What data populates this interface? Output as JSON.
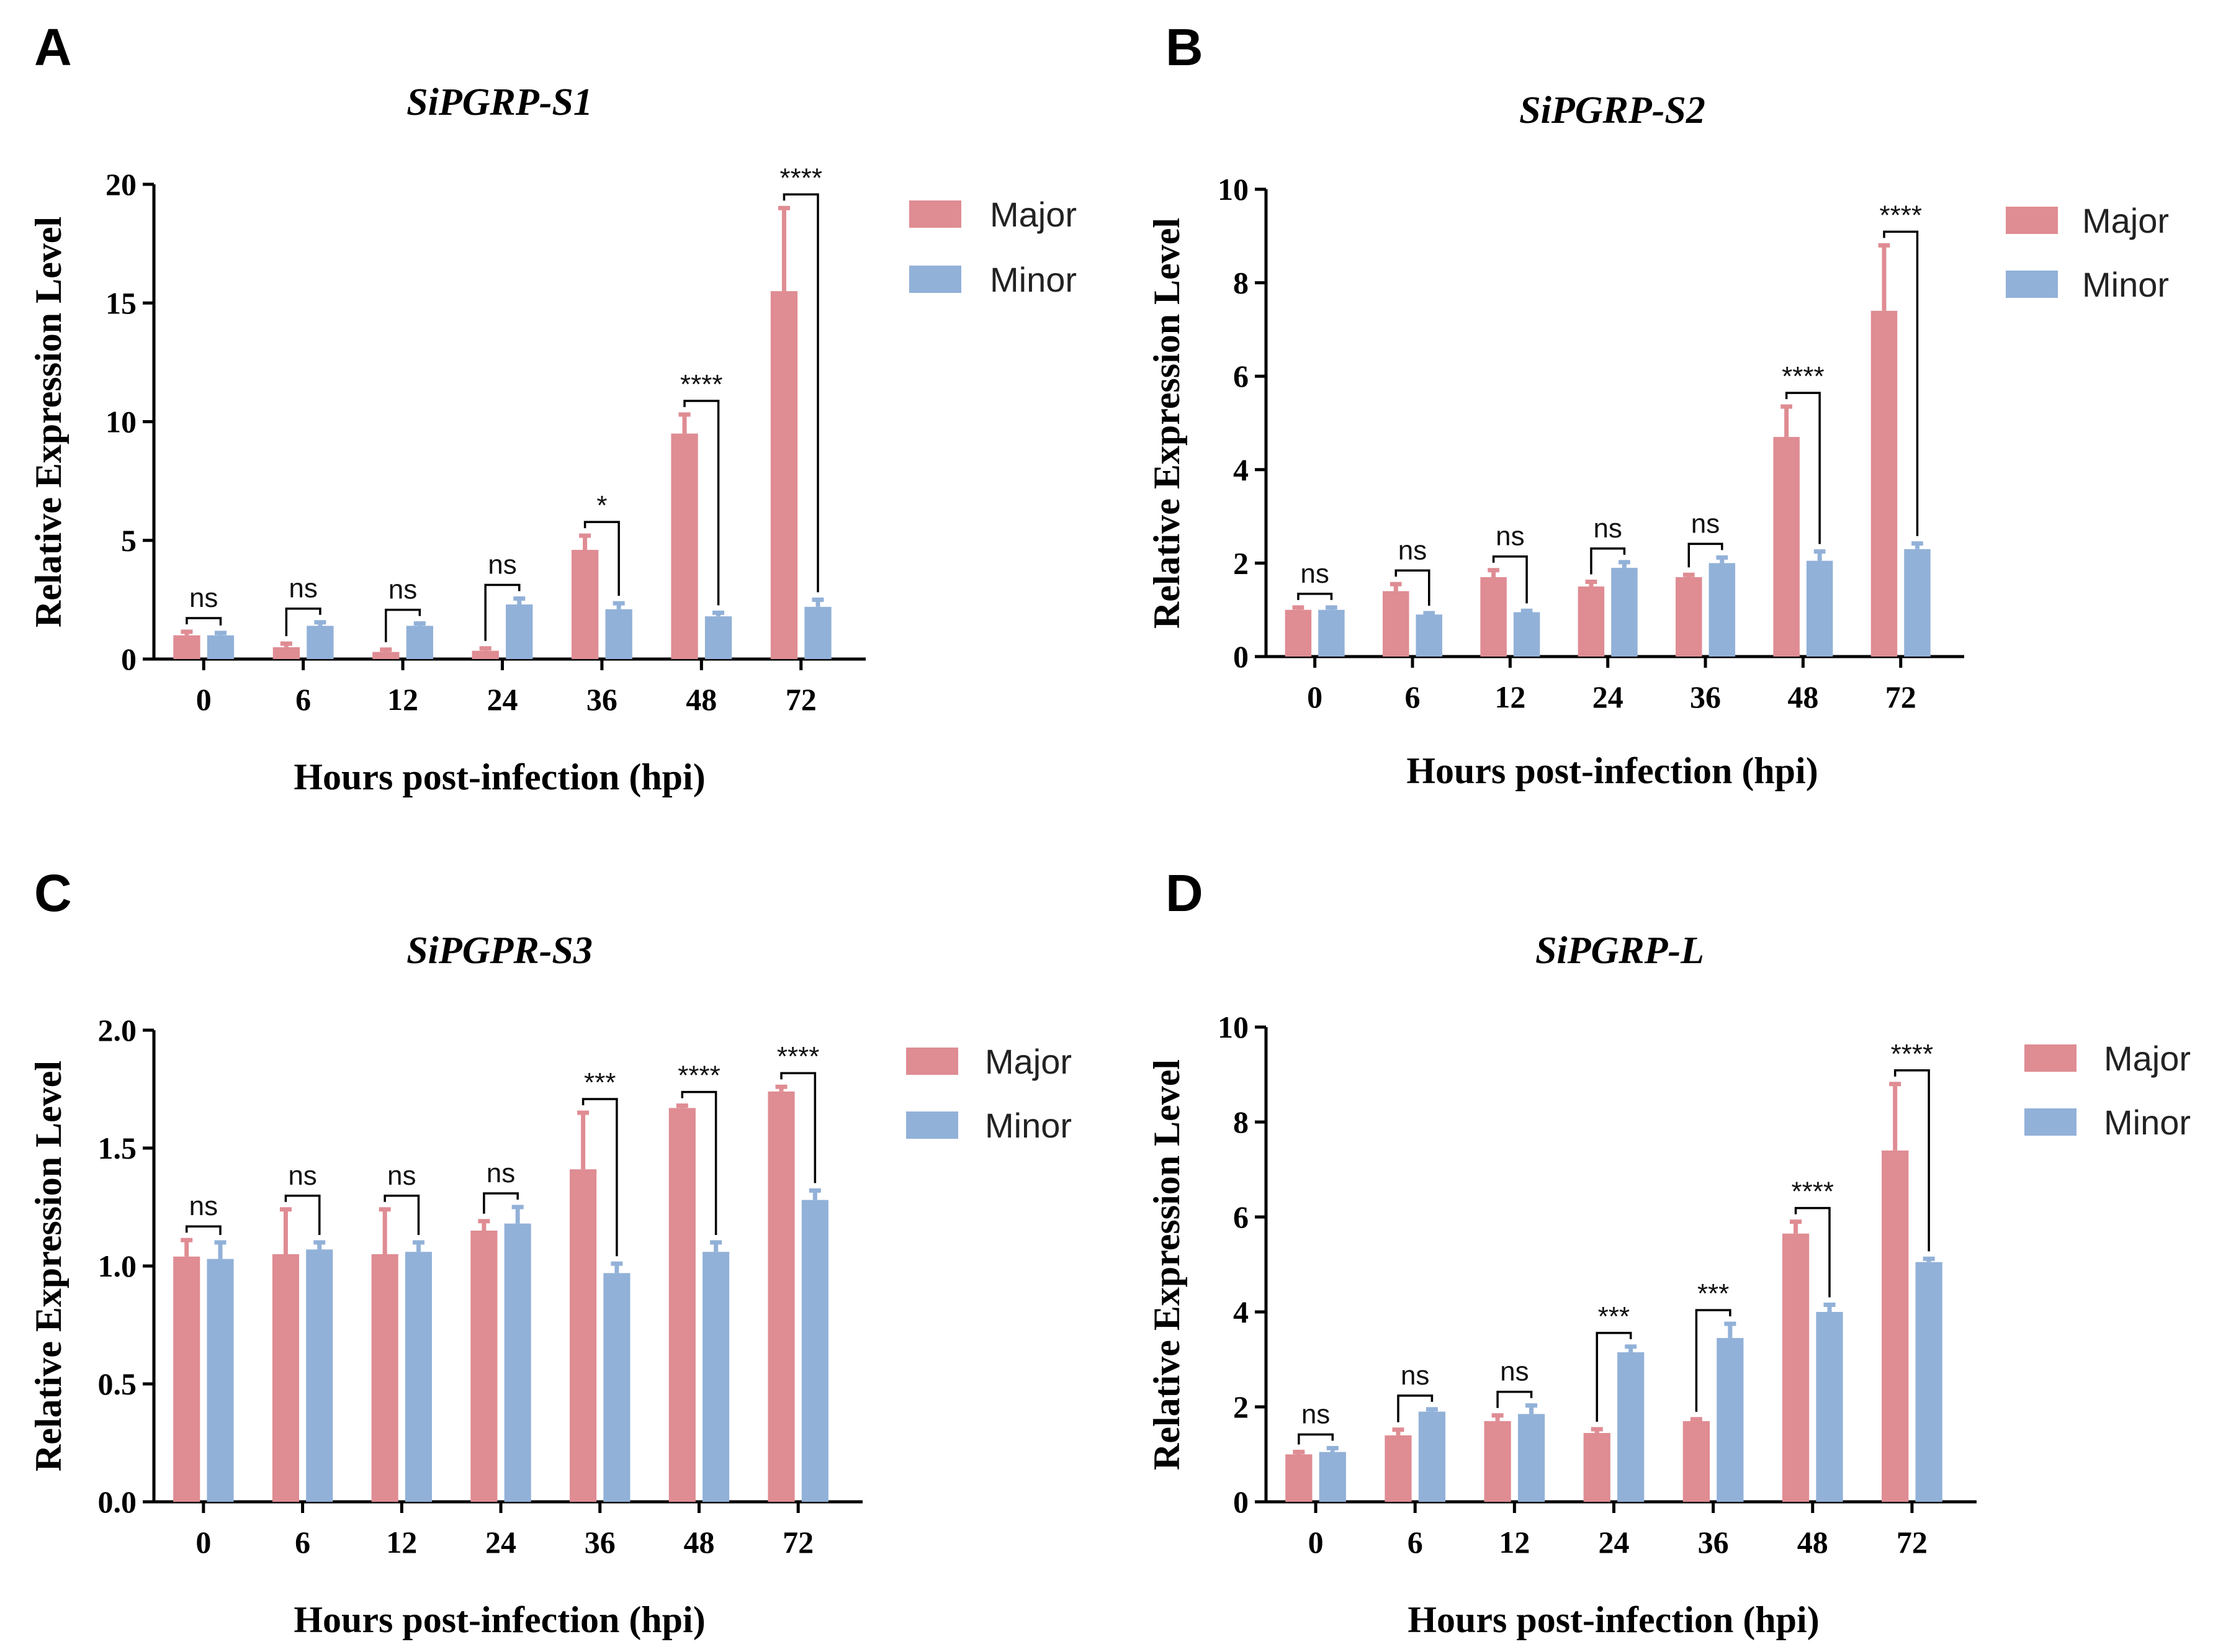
{
  "colors": {
    "major": "#df8c93",
    "minor": "#92b1d8"
  },
  "chart_data": [
    {
      "type": "bar",
      "panel": "A",
      "title": "SiPGRP-S1",
      "xlabel": "Hours post-infection (hpi)",
      "ylabel": "Relative Expression Level",
      "categories": [
        "0",
        "6",
        "12",
        "24",
        "36",
        "48",
        "72"
      ],
      "ylim": [
        0,
        20
      ],
      "yticks": [
        0,
        5,
        10,
        15,
        20
      ],
      "ytick_labels": [
        "0",
        "5",
        "10",
        "15",
        "20"
      ],
      "legend": [
        "Major",
        "Minor"
      ],
      "series": [
        {
          "name": "Major",
          "values": [
            1.0,
            0.5,
            0.3,
            0.35,
            4.6,
            9.5,
            15.5
          ],
          "errors": [
            0.15,
            0.15,
            0.1,
            0.1,
            0.6,
            0.8,
            3.5
          ]
        },
        {
          "name": "Minor",
          "values": [
            1.0,
            1.4,
            1.4,
            2.3,
            2.1,
            1.8,
            2.2
          ],
          "errors": [
            0.1,
            0.15,
            0.1,
            0.25,
            0.25,
            0.15,
            0.3
          ]
        }
      ],
      "significance": [
        "ns",
        "ns",
        "ns",
        "ns",
        "*",
        "****",
        "****"
      ]
    },
    {
      "type": "bar",
      "panel": "B",
      "title": "SiPGRP-S2",
      "xlabel": "Hours post-infection (hpi)",
      "ylabel": "Relative Expression Level",
      "categories": [
        "0",
        "6",
        "12",
        "24",
        "36",
        "48",
        "72"
      ],
      "ylim": [
        0,
        10
      ],
      "yticks": [
        0,
        2,
        4,
        6,
        8,
        10
      ],
      "ytick_labels": [
        "0",
        "2",
        "4",
        "6",
        "8",
        "10"
      ],
      "legend": [
        "Major",
        "Minor"
      ],
      "series": [
        {
          "name": "Major",
          "values": [
            1.0,
            1.4,
            1.7,
            1.5,
            1.7,
            4.7,
            7.4
          ],
          "errors": [
            0.05,
            0.15,
            0.15,
            0.1,
            0.05,
            0.65,
            1.4
          ]
        },
        {
          "name": "Minor",
          "values": [
            1.0,
            0.9,
            0.95,
            1.9,
            2.0,
            2.05,
            2.3
          ],
          "errors": [
            0.05,
            0.03,
            0.03,
            0.12,
            0.12,
            0.2,
            0.12
          ]
        }
      ],
      "significance": [
        "ns",
        "ns",
        "ns",
        "ns",
        "ns",
        "****",
        "****"
      ]
    },
    {
      "type": "bar",
      "panel": "C",
      "title": "SiPGPR-S3",
      "xlabel": "Hours post-infection (hpi)",
      "ylabel": "Relative Expression Level",
      "categories": [
        "0",
        "6",
        "12",
        "24",
        "36",
        "48",
        "72"
      ],
      "ylim": [
        0,
        2.0
      ],
      "yticks": [
        0,
        0.5,
        1.0,
        1.5,
        2.0
      ],
      "ytick_labels": [
        "0.0",
        "0.5",
        "1.0",
        "1.5",
        "2.0"
      ],
      "legend": [
        "Major",
        "Minor"
      ],
      "series": [
        {
          "name": "Major",
          "values": [
            1.04,
            1.05,
            1.05,
            1.15,
            1.41,
            1.67,
            1.74
          ],
          "errors": [
            0.07,
            0.19,
            0.19,
            0.04,
            0.24,
            0.01,
            0.02
          ]
        },
        {
          "name": "Minor",
          "values": [
            1.03,
            1.07,
            1.06,
            1.18,
            0.97,
            1.06,
            1.28
          ],
          "errors": [
            0.07,
            0.03,
            0.04,
            0.07,
            0.04,
            0.04,
            0.04
          ]
        }
      ],
      "significance": [
        "ns",
        "ns",
        "ns",
        "ns",
        "***",
        "****",
        "****"
      ]
    },
    {
      "type": "bar",
      "panel": "D",
      "title": "SiPGRP-L",
      "xlabel": "Hours post-infection (hpi)",
      "ylabel": "Relative Expression Level",
      "categories": [
        "0",
        "6",
        "12",
        "24",
        "36",
        "48",
        "72"
      ],
      "ylim": [
        0,
        10
      ],
      "yticks": [
        0,
        2,
        4,
        6,
        8,
        10
      ],
      "ytick_labels": [
        "0",
        "2",
        "4",
        "6",
        "8",
        "10"
      ],
      "legend": [
        "Major",
        "Minor"
      ],
      "series": [
        {
          "name": "Major",
          "values": [
            1.0,
            1.4,
            1.7,
            1.45,
            1.7,
            5.65,
            7.4
          ],
          "errors": [
            0.05,
            0.12,
            0.12,
            0.08,
            0.04,
            0.25,
            1.4
          ]
        },
        {
          "name": "Minor",
          "values": [
            1.05,
            1.9,
            1.85,
            3.15,
            3.45,
            4.0,
            5.05
          ],
          "errors": [
            0.08,
            0.05,
            0.18,
            0.12,
            0.3,
            0.15,
            0.07
          ]
        }
      ],
      "significance": [
        "ns",
        "ns",
        "ns",
        "***",
        "***",
        "****",
        "****"
      ]
    }
  ]
}
